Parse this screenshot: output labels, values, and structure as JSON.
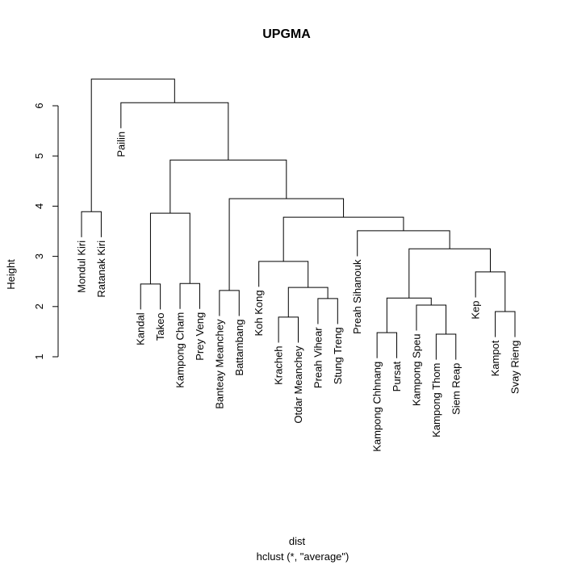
{
  "chart_data": {
    "type": "dendrogram",
    "title": "UPGMA",
    "ylabel": "Height",
    "xlabel": "dist",
    "subtitle": "hclust (*, \"average\")",
    "labels": [
      "Mondul Kiri",
      "Ratanak Kiri",
      "Pailin",
      "Kandal",
      "Takeo",
      "Kampong Cham",
      "Prey Veng",
      "Banteay Meanchey",
      "Battambang",
      "Koh Kong",
      "Kracheh",
      "Otdar Meanchey",
      "Preah Vihear",
      "Stung Treng",
      "Preah Sihanouk",
      "Kampong Chhnang",
      "Pursat",
      "Kampong Speu",
      "Kampong Thom",
      "Siem Reap",
      "Kep",
      "Kampot",
      "Svay Rieng"
    ],
    "merge": [
      [
        -19,
        -20
      ],
      [
        -16,
        -17
      ],
      [
        -11,
        -12
      ],
      [
        -22,
        -23
      ],
      [
        -18,
        1
      ],
      [
        -13,
        -14
      ],
      [
        2,
        5
      ],
      [
        -8,
        -9
      ],
      [
        3,
        6
      ],
      [
        -4,
        -5
      ],
      [
        -6,
        -7
      ],
      [
        -21,
        4
      ],
      [
        -10,
        9
      ],
      [
        7,
        12
      ],
      [
        -15,
        14
      ],
      [
        13,
        15
      ],
      [
        10,
        11
      ],
      [
        -1,
        -2
      ],
      [
        8,
        16
      ],
      [
        17,
        19
      ],
      [
        -3,
        20
      ],
      [
        18,
        21
      ]
    ],
    "height": [
      1.45,
      1.48,
      1.79,
      1.9,
      2.03,
      2.16,
      2.17,
      2.32,
      2.38,
      2.45,
      2.46,
      2.69,
      2.9,
      3.15,
      3.51,
      3.78,
      3.86,
      3.89,
      4.15,
      4.92,
      6.06,
      6.53
    ],
    "ylim": [
      1,
      6.6
    ],
    "yticks": [
      1,
      2,
      3,
      4,
      5,
      6
    ],
    "color": "#000000"
  }
}
